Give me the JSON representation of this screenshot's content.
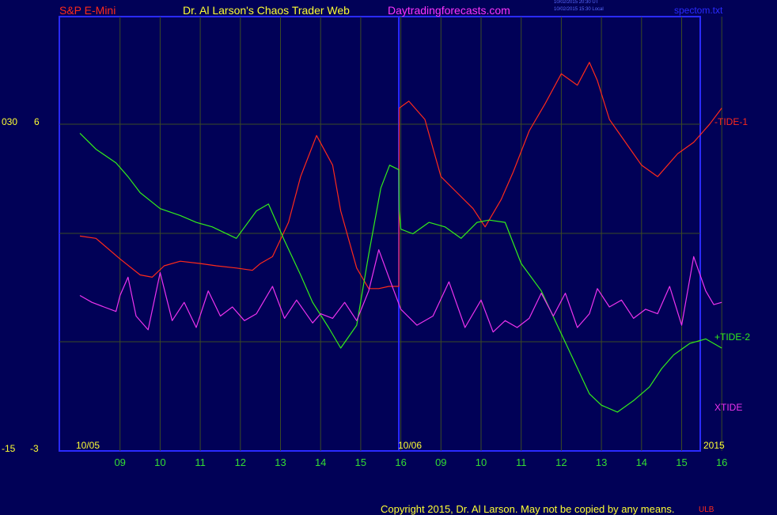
{
  "header": {
    "instrument": "S&P E-Mini",
    "title": "Dr. Al Larson's Chaos Trader Web",
    "site": "Daytradingforecasts.com",
    "timestamp_ut": "10/02/2015 20:30 UT",
    "timestamp_local": "10/02/2015 15:30 Local",
    "file": "spectom.txt"
  },
  "footer": {
    "copyright": "Copyright 2015, Dr. Al Larson. May not be copied by any means.",
    "badge": "ULB"
  },
  "colors": {
    "background": "#010157",
    "frame": "#2a2aff",
    "grid": "#3b4a24",
    "tide1": "#ff2a1a",
    "tide2": "#33ee1a",
    "xtide": "#ee33ee",
    "instrument": "#ff2a1a",
    "title": "#ffff33",
    "site": "#ff33ff",
    "dates": "#ffff33",
    "ticks": "#33dd33"
  },
  "chart_data": {
    "type": "line",
    "x_unit": "trading day (Sep 09 – Oct 16, 2015)",
    "xlim": [
      0,
      16
    ],
    "x_tick_labels": [
      "09",
      "10",
      "11",
      "12",
      "13",
      "14",
      "15",
      "16",
      "09",
      "10",
      "11",
      "12",
      "13",
      "14",
      "15",
      "16"
    ],
    "date_labels": [
      "10/05",
      "10/06",
      "2015"
    ],
    "left_axis_labels": [
      "030",
      "6",
      "-15",
      "-3"
    ],
    "series": [
      {
        "name": "-TIDE-1",
        "x": [
          0,
          0.4,
          1.0,
          1.5,
          1.8,
          2.1,
          2.5,
          3.0,
          3.4,
          3.9,
          4.3,
          4.5,
          4.8,
          5.2,
          5.5,
          5.9,
          6.3,
          6.5,
          6.9,
          7.2,
          7.45,
          7.7,
          7.95,
          7.96,
          8.2,
          8.6,
          9.0,
          9.4,
          9.8,
          10.1,
          10.5,
          10.8,
          11.2,
          11.6,
          12.0,
          12.4,
          12.7,
          12.9,
          13.2,
          13.6,
          14.0,
          14.4,
          14.9,
          15.3,
          15.7,
          16.0
        ],
        "y": [
          0.4,
          0.3,
          -0.6,
          -1.3,
          -1.4,
          -0.9,
          -0.7,
          -0.8,
          -0.9,
          -1.0,
          -1.1,
          -0.8,
          -0.5,
          1.0,
          3.0,
          4.8,
          3.5,
          1.5,
          -1.0,
          -1.9,
          -1.9,
          -1.8,
          -1.8,
          6.0,
          6.3,
          5.5,
          3.0,
          2.3,
          1.6,
          0.8,
          2.0,
          3.2,
          5.0,
          6.2,
          7.5,
          7.0,
          8.0,
          7.2,
          5.5,
          4.5,
          3.5,
          3.0,
          4.0,
          4.5,
          5.3,
          6.0
        ],
        "color": "#ff2a1a"
      },
      {
        "name": "+TIDE-2",
        "x": [
          0,
          0.4,
          0.9,
          1.2,
          1.5,
          2.0,
          2.5,
          2.9,
          3.3,
          3.9,
          4.4,
          4.7,
          5.1,
          5.5,
          5.8,
          6.2,
          6.5,
          6.9,
          7.2,
          7.5,
          7.72,
          7.95,
          7.96,
          8.0,
          8.3,
          8.7,
          9.1,
          9.5,
          9.9,
          10.2,
          10.6,
          11.0,
          11.5,
          11.9,
          12.3,
          12.7,
          13.0,
          13.4,
          13.8,
          14.2,
          14.5,
          14.8,
          15.2,
          15.6,
          16.0
        ],
        "y": [
          4.9,
          4.2,
          3.6,
          3.0,
          2.3,
          1.6,
          1.3,
          1.0,
          0.8,
          0.3,
          1.5,
          1.8,
          0.2,
          -1.3,
          -2.5,
          -3.6,
          -4.5,
          -3.5,
          -0.4,
          2.5,
          3.5,
          3.3,
          1.5,
          0.7,
          0.5,
          1.0,
          0.8,
          0.3,
          1.0,
          1.1,
          1.0,
          -0.8,
          -2.0,
          -3.5,
          -5.0,
          -6.5,
          -7.0,
          -7.3,
          -6.8,
          -6.2,
          -5.4,
          -4.8,
          -4.3,
          -4.1,
          -4.5
        ],
        "color": "#33ee1a"
      },
      {
        "name": "XTIDE",
        "x": [
          0,
          0.3,
          0.6,
          0.9,
          1.0,
          1.2,
          1.4,
          1.7,
          2.0,
          2.3,
          2.6,
          2.9,
          3.2,
          3.5,
          3.8,
          4.1,
          4.4,
          4.8,
          5.1,
          5.4,
          5.8,
          6.0,
          6.3,
          6.6,
          6.9,
          7.2,
          7.45,
          7.7,
          8.0,
          8.4,
          8.8,
          9.2,
          9.6,
          10.0,
          10.3,
          10.6,
          10.9,
          11.2,
          11.5,
          11.8,
          12.1,
          12.4,
          12.7,
          12.9,
          13.2,
          13.5,
          13.8,
          14.1,
          14.4,
          14.7,
          15.0,
          15.3,
          15.6,
          15.8,
          16.0
        ],
        "y": [
          -2.2,
          -2.5,
          -2.7,
          -2.9,
          -2.2,
          -1.4,
          -3.1,
          -3.7,
          -1.2,
          -3.3,
          -2.5,
          -3.6,
          -2.0,
          -3.1,
          -2.7,
          -3.3,
          -3.0,
          -1.8,
          -3.2,
          -2.4,
          -3.4,
          -3.0,
          -3.2,
          -2.5,
          -3.3,
          -2.0,
          -0.2,
          -1.4,
          -2.8,
          -3.5,
          -3.1,
          -1.6,
          -3.6,
          -2.4,
          -3.8,
          -3.3,
          -3.6,
          -3.2,
          -2.1,
          -3.1,
          -2.1,
          -3.6,
          -3.0,
          -1.9,
          -2.7,
          -2.4,
          -3.2,
          -2.8,
          -3.0,
          -1.8,
          -3.5,
          -0.5,
          -2.0,
          -2.6,
          -2.5
        ],
        "color": "#ee33ee"
      }
    ]
  }
}
